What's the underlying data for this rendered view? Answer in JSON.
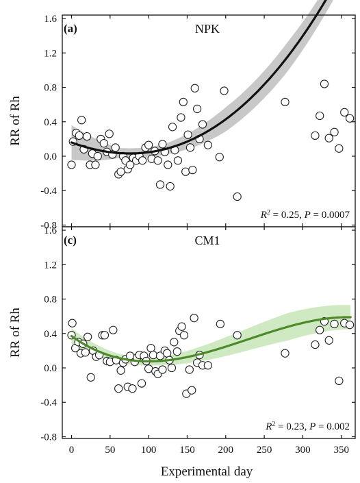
{
  "xlabel": "Experimental day",
  "chart_data": [
    {
      "type": "scatter",
      "panel_label": "(a)",
      "title": "NPK",
      "ylabel": "RR of Rh",
      "xlabel": "",
      "xlim": [
        -12,
        368
      ],
      "ylim": [
        -0.82,
        1.64
      ],
      "x_ticks": [
        0,
        50,
        100,
        150,
        200,
        250,
        300,
        350
      ],
      "y_ticks": [
        -0.8,
        -0.4,
        0.0,
        0.4,
        0.8,
        1.2,
        1.6
      ],
      "y_tick_labels": [
        "-0.8",
        "-0.4",
        "0.0",
        "0.4",
        "0.8",
        "1.2",
        "1.6"
      ],
      "stat_r2": "0.25",
      "stat_p": "0.0007",
      "fit_color": "#111111",
      "band_color": "#c8c8c8",
      "fit_coefficients": [
        0.16,
        -0.00331,
        2.02e-05,
        1.53e-08
      ],
      "band_halfwidth": [
        0.2,
        0.06,
        0.06,
        0.14,
        0.17,
        0.14
      ],
      "band_x": [
        0,
        60,
        120,
        200,
        280,
        362
      ],
      "points": [
        {
          "x": 0,
          "y": -0.1
        },
        {
          "x": 2,
          "y": 0.17
        },
        {
          "x": 6,
          "y": 0.27
        },
        {
          "x": 10,
          "y": 0.24
        },
        {
          "x": 13,
          "y": 0.42
        },
        {
          "x": 16,
          "y": 0.08
        },
        {
          "x": 20,
          "y": 0.23
        },
        {
          "x": 24,
          "y": -0.1
        },
        {
          "x": 27,
          "y": 0.03
        },
        {
          "x": 31,
          "y": -0.1
        },
        {
          "x": 34,
          "y": 0.0
        },
        {
          "x": 38,
          "y": 0.2
        },
        {
          "x": 42,
          "y": 0.15
        },
        {
          "x": 46,
          "y": 0.05
        },
        {
          "x": 49,
          "y": 0.26
        },
        {
          "x": 53,
          "y": 0.02
        },
        {
          "x": 57,
          "y": 0.1
        },
        {
          "x": 61,
          "y": -0.21
        },
        {
          "x": 64,
          "y": -0.18
        },
        {
          "x": 67,
          "y": 0.0
        },
        {
          "x": 70,
          "y": -0.05
        },
        {
          "x": 73,
          "y": -0.15
        },
        {
          "x": 76,
          "y": -0.1
        },
        {
          "x": 80,
          "y": -0.02
        },
        {
          "x": 84,
          "y": -0.05
        },
        {
          "x": 88,
          "y": 0.0
        },
        {
          "x": 92,
          "y": -0.05
        },
        {
          "x": 96,
          "y": 0.1
        },
        {
          "x": 100,
          "y": 0.13
        },
        {
          "x": 104,
          "y": -0.03
        },
        {
          "x": 108,
          "y": 0.06
        },
        {
          "x": 112,
          "y": -0.05
        },
        {
          "x": 115,
          "y": -0.33
        },
        {
          "x": 118,
          "y": 0.14
        },
        {
          "x": 121,
          "y": 0.05
        },
        {
          "x": 125,
          "y": -0.1
        },
        {
          "x": 128,
          "y": -0.35
        },
        {
          "x": 131,
          "y": 0.34
        },
        {
          "x": 134,
          "y": 0.07
        },
        {
          "x": 138,
          "y": -0.05
        },
        {
          "x": 142,
          "y": 0.45
        },
        {
          "x": 145,
          "y": 0.63
        },
        {
          "x": 148,
          "y": -0.18
        },
        {
          "x": 151,
          "y": 0.25
        },
        {
          "x": 154,
          "y": 0.1
        },
        {
          "x": 157,
          "y": -0.16
        },
        {
          "x": 160,
          "y": 0.79
        },
        {
          "x": 163,
          "y": 0.55
        },
        {
          "x": 166,
          "y": 0.2
        },
        {
          "x": 170,
          "y": 0.37
        },
        {
          "x": 177,
          "y": 0.13
        },
        {
          "x": 192,
          "y": -0.01
        },
        {
          "x": 198,
          "y": 0.76
        },
        {
          "x": 215,
          "y": -0.47
        },
        {
          "x": 277,
          "y": 0.63
        },
        {
          "x": 316,
          "y": 0.24
        },
        {
          "x": 322,
          "y": 0.47
        },
        {
          "x": 328,
          "y": 0.84
        },
        {
          "x": 334,
          "y": 0.21
        },
        {
          "x": 341,
          "y": 0.28
        },
        {
          "x": 347,
          "y": 0.09
        },
        {
          "x": 354,
          "y": 0.51
        },
        {
          "x": 361,
          "y": 0.44
        }
      ]
    },
    {
      "type": "scatter",
      "panel_label": "(c)",
      "title": "CM1",
      "ylabel": "RR of Rh",
      "xlabel": "Experimental day",
      "xlim": [
        -12,
        368
      ],
      "ylim": [
        -0.82,
        1.64
      ],
      "x_ticks": [
        0,
        50,
        100,
        150,
        200,
        250,
        300,
        350
      ],
      "y_ticks": [
        -0.8,
        -0.4,
        0.0,
        0.4,
        0.8,
        1.2,
        1.6
      ],
      "y_tick_labels": [
        "-0.8",
        "-0.4",
        "0.0",
        "0.4",
        "0.8",
        "1.2",
        "1.6"
      ],
      "stat_r2": "0.23",
      "stat_p": "0.002",
      "fit_color": "#4e8a2a",
      "band_color": "#cfeac2",
      "fit_coefficients": [
        0.37,
        -0.00646,
        4.12e-05,
        -5.99e-08
      ],
      "band_halfwidth": [
        0.09,
        0.05,
        0.05,
        0.11,
        0.16,
        0.14
      ],
      "band_x": [
        0,
        60,
        120,
        200,
        280,
        362
      ],
      "points": [
        {
          "x": 0,
          "y": 0.38
        },
        {
          "x": 1,
          "y": 0.52
        },
        {
          "x": 5,
          "y": 0.23
        },
        {
          "x": 9,
          "y": 0.3
        },
        {
          "x": 12,
          "y": 0.17
        },
        {
          "x": 15,
          "y": 0.28
        },
        {
          "x": 18,
          "y": 0.18
        },
        {
          "x": 21,
          "y": 0.36
        },
        {
          "x": 25,
          "y": -0.11
        },
        {
          "x": 28,
          "y": 0.2
        },
        {
          "x": 32,
          "y": 0.13
        },
        {
          "x": 36,
          "y": 0.15
        },
        {
          "x": 40,
          "y": 0.38
        },
        {
          "x": 43,
          "y": 0.38
        },
        {
          "x": 46,
          "y": 0.08
        },
        {
          "x": 50,
          "y": 0.07
        },
        {
          "x": 54,
          "y": 0.44
        },
        {
          "x": 58,
          "y": 0.09
        },
        {
          "x": 61,
          "y": -0.24
        },
        {
          "x": 64,
          "y": -0.03
        },
        {
          "x": 67,
          "y": 0.06
        },
        {
          "x": 70,
          "y": 0.1
        },
        {
          "x": 73,
          "y": -0.22
        },
        {
          "x": 76,
          "y": 0.14
        },
        {
          "x": 79,
          "y": -0.24
        },
        {
          "x": 82,
          "y": 0.07
        },
        {
          "x": 85,
          "y": 0.12
        },
        {
          "x": 88,
          "y": 0.15
        },
        {
          "x": 91,
          "y": -0.18
        },
        {
          "x": 94,
          "y": 0.14
        },
        {
          "x": 97,
          "y": 0.08
        },
        {
          "x": 100,
          "y": -0.01
        },
        {
          "x": 103,
          "y": 0.23
        },
        {
          "x": 106,
          "y": 0.15
        },
        {
          "x": 109,
          "y": -0.04
        },
        {
          "x": 112,
          "y": -0.07
        },
        {
          "x": 115,
          "y": 0.14
        },
        {
          "x": 118,
          "y": -0.02
        },
        {
          "x": 121,
          "y": 0.2
        },
        {
          "x": 124,
          "y": 0.17
        },
        {
          "x": 127,
          "y": 0.09
        },
        {
          "x": 130,
          "y": 0.0
        },
        {
          "x": 133,
          "y": 0.3
        },
        {
          "x": 137,
          "y": 0.19
        },
        {
          "x": 140,
          "y": 0.43
        },
        {
          "x": 143,
          "y": 0.48
        },
        {
          "x": 146,
          "y": 0.38
        },
        {
          "x": 149,
          "y": -0.3
        },
        {
          "x": 153,
          "y": -0.02
        },
        {
          "x": 156,
          "y": -0.26
        },
        {
          "x": 159,
          "y": 0.58
        },
        {
          "x": 163,
          "y": 0.06
        },
        {
          "x": 166,
          "y": 0.15
        },
        {
          "x": 170,
          "y": 0.03
        },
        {
          "x": 177,
          "y": 0.03
        },
        {
          "x": 193,
          "y": 0.51
        },
        {
          "x": 215,
          "y": 0.38
        },
        {
          "x": 277,
          "y": 0.17
        },
        {
          "x": 316,
          "y": 0.27
        },
        {
          "x": 322,
          "y": 0.44
        },
        {
          "x": 328,
          "y": 0.54
        },
        {
          "x": 334,
          "y": 0.32
        },
        {
          "x": 341,
          "y": 0.51
        },
        {
          "x": 347,
          "y": -0.15
        },
        {
          "x": 354,
          "y": 0.52
        },
        {
          "x": 361,
          "y": 0.5
        }
      ]
    }
  ]
}
